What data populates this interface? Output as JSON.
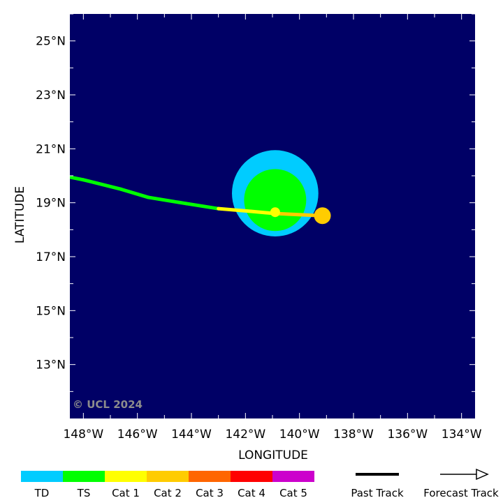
{
  "map": {
    "background_color": "#000066",
    "watermark": "© UCL 2024",
    "xlabel": "LONGITUDE",
    "ylabel": "LATITUDE",
    "lon_range": [
      -148.5,
      -133.5
    ],
    "lat_range": [
      11.0,
      26.0
    ],
    "lon_ticks": [
      {
        "value": -148,
        "label": "148°W"
      },
      {
        "value": -146,
        "label": "146°W"
      },
      {
        "value": -144,
        "label": "144°W"
      },
      {
        "value": -142,
        "label": "142°W"
      },
      {
        "value": -140,
        "label": "140°W"
      },
      {
        "value": -138,
        "label": "138°W"
      },
      {
        "value": -136,
        "label": "136°W"
      },
      {
        "value": -134,
        "label": "134°W"
      }
    ],
    "lat_ticks": [
      {
        "value": 25,
        "label": "25°N"
      },
      {
        "value": 23,
        "label": "23°N"
      },
      {
        "value": 21,
        "label": "21°N"
      },
      {
        "value": 19,
        "label": "19°N"
      },
      {
        "value": 17,
        "label": "17°N"
      },
      {
        "value": 15,
        "label": "15°N"
      },
      {
        "value": 13,
        "label": "13°N"
      }
    ]
  },
  "storm": {
    "wind_field": [
      {
        "category": "TD",
        "color": "#00ccff",
        "center_lon": -140.9,
        "center_lat": 19.35,
        "radius_deg": 1.6
      },
      {
        "category": "TS",
        "color": "#00ff00",
        "center_lon": -140.9,
        "center_lat": 19.1,
        "radius_deg": 1.15
      }
    ],
    "past_track": [
      {
        "lon": -148.5,
        "lat": 19.95,
        "category": "TS"
      },
      {
        "lon": -148.0,
        "lat": 19.85,
        "category": "TS"
      },
      {
        "lon": -146.6,
        "lat": 19.5,
        "category": "TS"
      },
      {
        "lon": -145.6,
        "lat": 19.2,
        "category": "TS"
      },
      {
        "lon": -144.2,
        "lat": 18.97,
        "category": "TS"
      },
      {
        "lon": -143.0,
        "lat": 18.78,
        "category": "Cat 1"
      },
      {
        "lon": -141.8,
        "lat": 18.68,
        "category": "Cat 1"
      },
      {
        "lon": -140.9,
        "lat": 18.6,
        "category": "Cat 2"
      },
      {
        "lon": -139.2,
        "lat": 18.52,
        "category": "Cat 2"
      }
    ],
    "previous_position": {
      "lon": -140.9,
      "lat": 18.65,
      "category": "Cat 1"
    },
    "current_position": {
      "lon": -139.15,
      "lat": 18.52,
      "category": "Cat 2"
    }
  },
  "legend": {
    "categories": [
      {
        "label": "TD",
        "color": "#00ccff"
      },
      {
        "label": "TS",
        "color": "#00ff00"
      },
      {
        "label": "Cat 1",
        "color": "#ffff00"
      },
      {
        "label": "Cat 2",
        "color": "#ffcc00"
      },
      {
        "label": "Cat 3",
        "color": "#ff6600"
      },
      {
        "label": "Cat 4",
        "color": "#ff0000"
      },
      {
        "label": "Cat 5",
        "color": "#cc00cc"
      }
    ],
    "past_track_label": "Past Track",
    "forecast_track_label": "Forecast Track"
  }
}
